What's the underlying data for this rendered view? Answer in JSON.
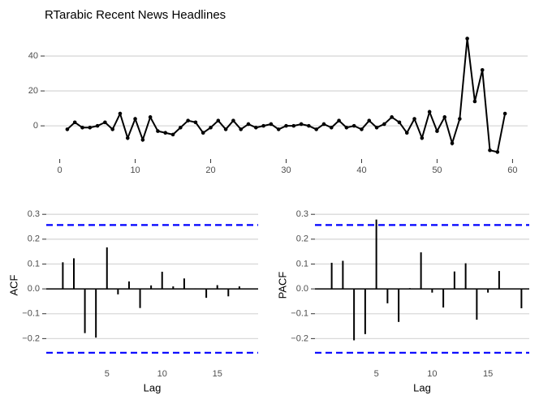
{
  "chart_data": [
    {
      "type": "line",
      "title": "RTarabic Recent News Headlines",
      "color": "#000000",
      "x": [
        1,
        2,
        3,
        4,
        5,
        6,
        7,
        8,
        9,
        10,
        11,
        12,
        13,
        14,
        15,
        16,
        17,
        18,
        19,
        20,
        21,
        22,
        23,
        24,
        25,
        26,
        27,
        28,
        29,
        30,
        31,
        32,
        33,
        34,
        35,
        36,
        37,
        38,
        39,
        40,
        41,
        42,
        43,
        44,
        45,
        46,
        47,
        48,
        49,
        50,
        51,
        52,
        53,
        54,
        55,
        56,
        57,
        58,
        59
      ],
      "values": [
        -2,
        2,
        -1,
        -1,
        0,
        2,
        -2,
        7,
        -7,
        4,
        -8,
        5,
        -3,
        -4,
        -5,
        -1,
        3,
        2,
        -4,
        -1,
        3,
        -2,
        3,
        -2,
        1,
        -1,
        0,
        1,
        -2,
        0,
        0,
        1,
        0,
        -2,
        1,
        -1,
        3,
        -1,
        0,
        -2,
        3,
        -1,
        1,
        5,
        2,
        -4,
        4,
        -7,
        8,
        -3,
        5,
        -10,
        4,
        50,
        14,
        32,
        -14,
        -15,
        7
      ],
      "xlim": [
        -2,
        62
      ],
      "ylim": [
        -19,
        53.5
      ],
      "xticks": [
        0,
        10,
        20,
        30,
        40,
        50,
        60
      ],
      "yticks": [
        0,
        20,
        40
      ],
      "grid": true
    },
    {
      "type": "acf",
      "y_label": "ACF",
      "x_label": "Lag",
      "color": "#000000",
      "ci_color": "#0000ff",
      "x": [
        1,
        2,
        3,
        4,
        5,
        6,
        7,
        8,
        9,
        10,
        11,
        12,
        13,
        14,
        15,
        16,
        17,
        18
      ],
      "values": [
        0.107,
        0.123,
        -0.178,
        -0.196,
        0.167,
        -0.022,
        0.03,
        -0.077,
        0.014,
        0.069,
        0.01,
        0.042,
        0.002,
        -0.036,
        0.015,
        -0.03,
        0.01,
        0
      ],
      "ci": [
        0.257,
        -0.257
      ],
      "xlim": [
        -0.5,
        18.7
      ],
      "ylim": [
        -0.3,
        0.33
      ],
      "xticks": [
        5,
        10,
        15
      ],
      "yticks": [
        {
          "value": -0.2,
          "label": "−0.2"
        },
        {
          "value": -0.1,
          "label": "−0.1"
        },
        {
          "value": 0,
          "label": "0.0"
        },
        0.1,
        0.2,
        0.3
      ],
      "grid": true
    },
    {
      "type": "acf",
      "y_label": "PACF",
      "x_label": "Lag",
      "color": "#000000",
      "ci_color": "#0000ff",
      "x": [
        1,
        2,
        3,
        4,
        5,
        6,
        7,
        8,
        9,
        10,
        11,
        12,
        13,
        14,
        15,
        16,
        17,
        18
      ],
      "values": [
        0.105,
        0.113,
        -0.207,
        -0.182,
        0.279,
        -0.058,
        -0.133,
        0.003,
        0.147,
        -0.015,
        -0.075,
        0.07,
        0.103,
        -0.124,
        -0.015,
        0.072,
        0,
        -0.078
      ],
      "ci": [
        0.257,
        -0.257
      ],
      "xlim": [
        -0.5,
        18.7
      ],
      "ylim": [
        -0.3,
        0.33
      ],
      "xticks": [
        5,
        10,
        15
      ],
      "yticks": [
        {
          "value": -0.2,
          "label": "−0.2"
        },
        {
          "value": -0.1,
          "label": "−0.1"
        },
        {
          "value": 0,
          "label": "0.0"
        },
        0.1,
        0.2,
        0.3
      ],
      "grid": true
    }
  ]
}
